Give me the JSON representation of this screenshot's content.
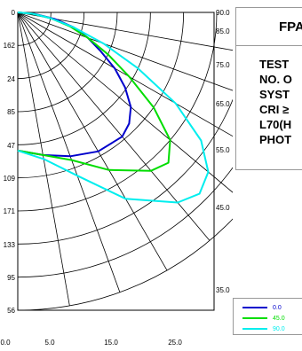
{
  "chart_data": {
    "type": "polar-line",
    "title": "",
    "radial_tick_labels": [
      "0",
      "162",
      "24",
      "85",
      "47",
      "109",
      "171",
      "133",
      "95",
      "56"
    ],
    "angle_tick_labels": [
      "90.0",
      "85.0",
      "75.0",
      "65.0",
      "55.0",
      "45.0",
      "35.0"
    ],
    "bottom_axis_labels": [
      "0.0",
      "5.0",
      "15.0",
      "25.0"
    ],
    "angles_deg": [
      0,
      10,
      20,
      30,
      40,
      45,
      50,
      55,
      60,
      65,
      70,
      75,
      80,
      85,
      90
    ],
    "radius_unit_max": 25,
    "series": [
      {
        "name": "0.0",
        "color": "#0000cc",
        "values": [
          16.7,
          17.5,
          18.5,
          19.4,
          19.6,
          19.0,
          17.8,
          15.8,
          13.5,
          11.0,
          9.0,
          7.0,
          4.5,
          2.0,
          0.0
        ]
      },
      {
        "name": "45.0",
        "color": "#00dd00",
        "values": [
          16.7,
          17.5,
          19.0,
          22.0,
          25.0,
          25.7,
          24.0,
          20.0,
          15.5,
          12.0,
          9.0,
          6.5,
          4.0,
          1.8,
          0.0
        ]
      },
      {
        "name": "90.0",
        "color": "#00eeee",
        "values": [
          16.7,
          18.0,
          21.0,
          26.0,
          30.0,
          31.0,
          30.0,
          27.0,
          22.0,
          16.0,
          11.0,
          7.0,
          4.0,
          1.8,
          0.0
        ]
      }
    ]
  },
  "info_panel": {
    "title": "FPA",
    "lines": [
      "TEST",
      "NO. O",
      "SYST",
      "CRI ≥",
      "L70(H",
      "PHOT"
    ]
  }
}
